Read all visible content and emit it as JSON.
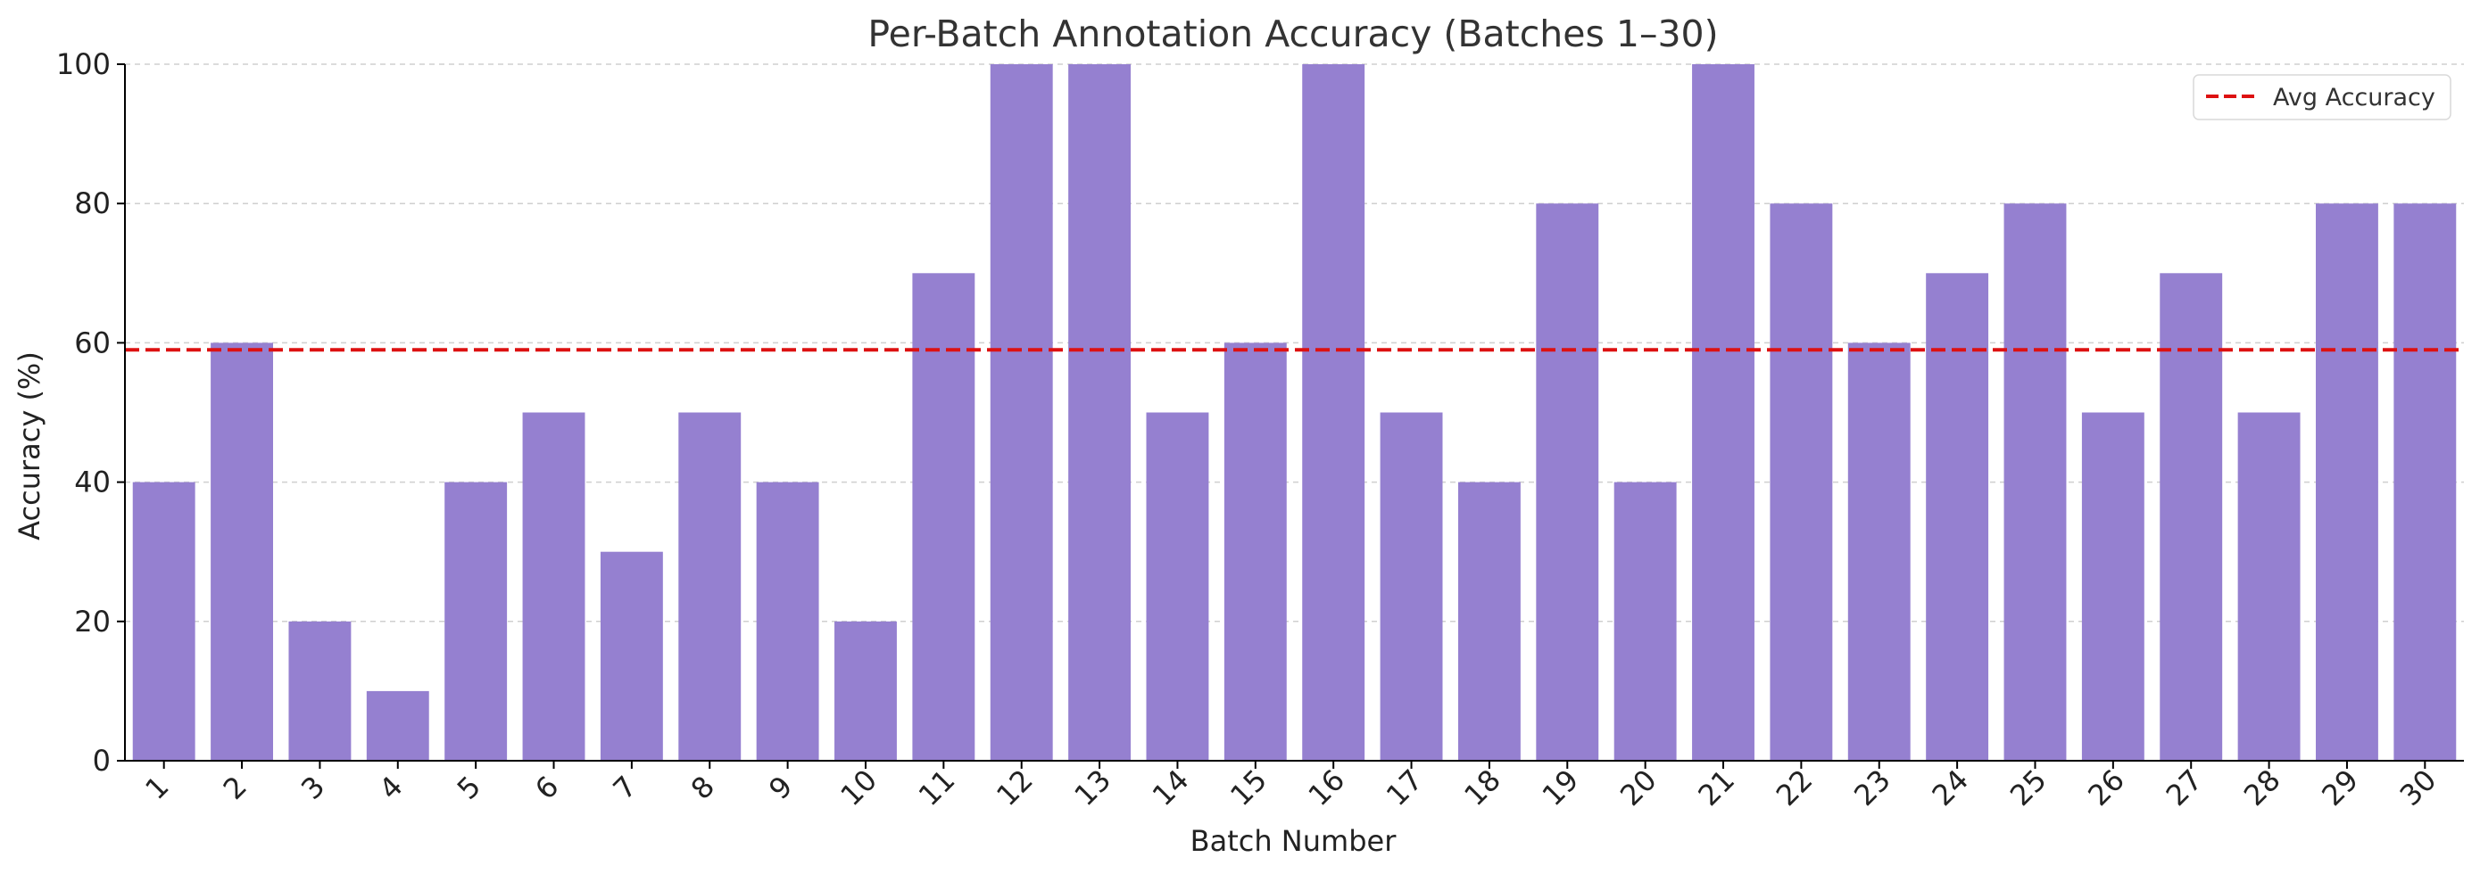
{
  "chart_data": {
    "type": "bar",
    "title": "Per-Batch Annotation Accuracy (Batches 1–30)",
    "xlabel": "Batch Number",
    "ylabel": "Accuracy (%)",
    "categories": [
      "1",
      "2",
      "3",
      "4",
      "5",
      "6",
      "7",
      "8",
      "9",
      "10",
      "11",
      "12",
      "13",
      "14",
      "15",
      "16",
      "17",
      "18",
      "19",
      "20",
      "21",
      "22",
      "23",
      "24",
      "25",
      "26",
      "27",
      "28",
      "29",
      "30"
    ],
    "series": [
      {
        "name": "",
        "values": [
          40,
          60,
          20,
          10,
          40,
          50,
          30,
          50,
          40,
          20,
          70,
          100,
          100,
          50,
          60,
          100,
          50,
          40,
          80,
          40,
          100,
          80,
          60,
          70,
          80,
          50,
          70,
          50,
          80,
          80
        ]
      }
    ],
    "ylim": [
      0,
      100
    ],
    "yticks": [
      0,
      20,
      40,
      60,
      80,
      100
    ],
    "reference_line": {
      "name": "Avg Accuracy",
      "value": 59
    },
    "grid": "horizontal dashed",
    "legend_position": "top-right",
    "colors": {
      "bar": "#9580d0",
      "avg_line": "#dd1111",
      "grid": "#cfcfcf",
      "axis": "#000000"
    }
  }
}
